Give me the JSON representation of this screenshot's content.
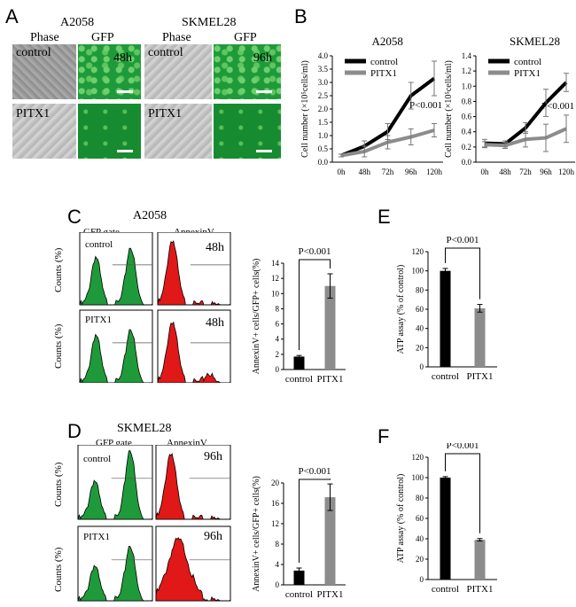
{
  "panels": {
    "A": "A",
    "B": "B",
    "C": "C",
    "D": "D",
    "E": "E",
    "F": "F"
  },
  "panelA": {
    "left_title": "A2058",
    "right_title": "SKMEL28",
    "col_phase": "Phase",
    "col_gfp": "GFP",
    "row_control": "control",
    "row_pitx1": "PITX1",
    "time_left": "48h",
    "time_right": "96h"
  },
  "panelC": {
    "title": "A2058",
    "gfp_gate": "GFP gate",
    "annexin": "AnnexinV",
    "row_control": "control",
    "row_pitx1": "PITX1",
    "time1": "48h",
    "time2": "48h",
    "counts": "Counts (%)"
  },
  "panelD": {
    "title": "SKMEL28",
    "gfp_gate": "GFP gate",
    "annexin": "AnnexinV",
    "row_control": "control",
    "row_pitx1": "PITX1",
    "time1": "96h",
    "time2": "96h",
    "counts": "Counts (%)"
  },
  "colors": {
    "black": "#000000",
    "gray": "#8c8c8c",
    "green": "#1f9a3a",
    "red": "#e01818"
  },
  "chart_data": [
    {
      "id": "B-A2058",
      "type": "line",
      "title": "A2058",
      "ylabel": "Cell number (×10⁵cells/ml)",
      "categories": [
        "0h",
        "48h",
        "72h",
        "96h",
        "120h"
      ],
      "ylim": [
        0,
        4.0
      ],
      "yticks": [
        "0.0",
        "0.5",
        "1.0",
        "1.5",
        "2.0",
        "2.5",
        "3.0",
        "3.5",
        "4.0"
      ],
      "series": [
        {
          "name": "control",
          "values": [
            0.25,
            0.6,
            1.15,
            2.5,
            3.15
          ],
          "err": [
            0.05,
            0.2,
            0.3,
            0.5,
            0.65
          ],
          "color": "#000000"
        },
        {
          "name": "PITX1",
          "values": [
            0.25,
            0.4,
            0.75,
            0.95,
            1.2
          ],
          "err": [
            0.05,
            0.2,
            0.25,
            0.3,
            0.25
          ],
          "color": "#8c8c8c"
        }
      ],
      "annotation": "P<0.001"
    },
    {
      "id": "B-SKMEL28",
      "type": "line",
      "title": "SKMEL28",
      "ylabel": "Cell number (×10⁵cells/ml)",
      "categories": [
        "0h",
        "48h",
        "72h",
        "96h",
        "120h"
      ],
      "ylim": [
        0,
        1.4
      ],
      "yticks": [
        "0.0",
        "0.2",
        "0.4",
        "0.6",
        "0.8",
        "1.0",
        "1.2",
        "1.4"
      ],
      "series": [
        {
          "name": "control",
          "values": [
            0.25,
            0.24,
            0.45,
            0.78,
            1.05
          ],
          "err": [
            0.05,
            0.04,
            0.07,
            0.18,
            0.12
          ],
          "color": "#000000"
        },
        {
          "name": "PITX1",
          "values": [
            0.23,
            0.22,
            0.3,
            0.32,
            0.44
          ],
          "err": [
            0.04,
            0.04,
            0.1,
            0.18,
            0.18
          ],
          "color": "#8c8c8c"
        }
      ],
      "annotation": "P<0.001"
    },
    {
      "id": "C-bar",
      "type": "bar",
      "ylabel": "AnnexinV+ cells/GFP+ cells(%)",
      "categories": [
        "control",
        "PITX1"
      ],
      "values": [
        1.7,
        11.0
      ],
      "err": [
        0.15,
        1.6
      ],
      "colors": [
        "#000000",
        "#8c8c8c"
      ],
      "ylim": [
        0,
        14
      ],
      "yticks": [
        "0",
        "2",
        "4",
        "6",
        "8",
        "10",
        "12",
        "14"
      ],
      "annotation": "P<0.001"
    },
    {
      "id": "E-bar",
      "type": "bar",
      "ylabel": "ATP assay (% of control)",
      "categories": [
        "control",
        "PITX1"
      ],
      "values": [
        100,
        61
      ],
      "err": [
        2.5,
        4
      ],
      "colors": [
        "#000000",
        "#8c8c8c"
      ],
      "ylim": [
        0,
        120
      ],
      "yticks": [
        "0",
        "20",
        "40",
        "60",
        "80",
        "100",
        "120"
      ],
      "annotation": "P<0.001"
    },
    {
      "id": "D-bar",
      "type": "bar",
      "ylabel": "AnnexinV+ cells/GFP+ cells(%)",
      "categories": [
        "control",
        "PITX1"
      ],
      "values": [
        2.8,
        17.2
      ],
      "err": [
        0.5,
        2.6
      ],
      "colors": [
        "#000000",
        "#8c8c8c"
      ],
      "ylim": [
        0,
        20
      ],
      "yticks": [
        "0",
        "4",
        "8",
        "12",
        "16",
        "20"
      ],
      "annotation": "P<0.001"
    },
    {
      "id": "F-bar",
      "type": "bar",
      "ylabel": "ATP assay (% of control)",
      "categories": [
        "control",
        "PITX1"
      ],
      "values": [
        100,
        39
      ],
      "err": [
        1.0,
        1.2
      ],
      "colors": [
        "#000000",
        "#8c8c8c"
      ],
      "ylim": [
        0,
        120
      ],
      "yticks": [
        "0",
        "20",
        "40",
        "60",
        "80",
        "100",
        "120"
      ],
      "annotation": "P<0.001"
    }
  ]
}
